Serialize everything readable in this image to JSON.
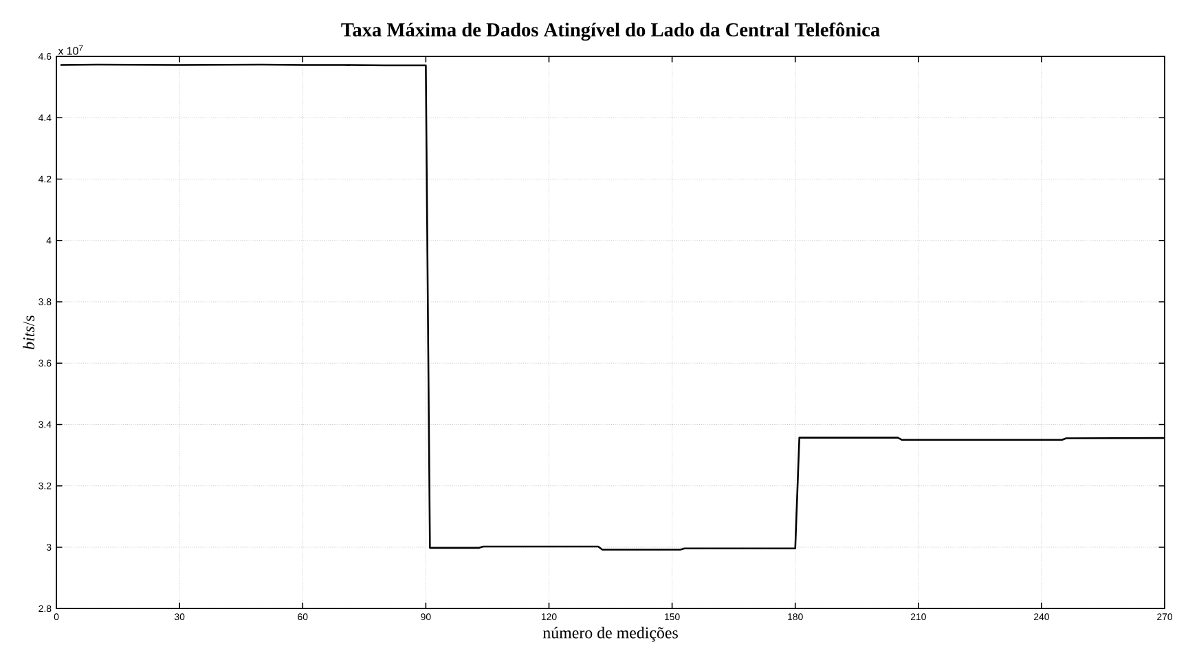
{
  "chart_data": {
    "type": "line",
    "title": "Taxa Máxima de Dados Atingível do Lado da Central Telefônica",
    "xlabel": "número de medições",
    "ylabel": "*bits*/s",
    "annotations": [
      "x 10$^{7}$"
    ],
    "x": [
      1,
      10,
      30,
      50,
      60,
      70,
      80,
      90,
      91,
      103,
      104,
      132,
      133,
      152,
      153,
      180,
      181,
      205,
      206,
      245,
      246,
      270
    ],
    "values": [
      4.572,
      4.573,
      4.572,
      4.573,
      4.572,
      4.572,
      4.571,
      4.571,
      2.998,
      2.998,
      3.002,
      3.002,
      2.992,
      2.992,
      2.996,
      2.996,
      3.357,
      3.357,
      3.35,
      3.35,
      3.355,
      3.356
    ],
    "color": "#000000",
    "xlim": [
      0,
      270
    ],
    "ylim": [
      2.8,
      4.6
    ],
    "xticks": [
      0,
      30,
      60,
      90,
      120,
      150,
      180,
      210,
      240,
      270
    ],
    "yticks": [
      2.8,
      3,
      3.2,
      3.4,
      3.6,
      3.8,
      4,
      4.2,
      4.4,
      4.6
    ],
    "grid": true,
    "marker": "none",
    "line_style": "solid"
  }
}
